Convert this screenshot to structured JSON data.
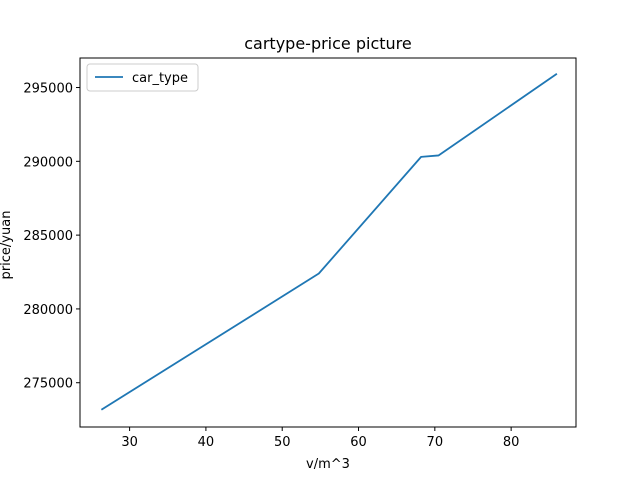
{
  "chart_data": {
    "type": "line",
    "title": "cartype-price picture",
    "xlabel": "v/m^3",
    "ylabel": "price/yuan",
    "xlim": [
      23.5,
      88.5
    ],
    "ylim": [
      272000,
      297000
    ],
    "x_ticks": [
      30,
      40,
      50,
      60,
      70,
      80
    ],
    "y_ticks": [
      275000,
      280000,
      285000,
      290000,
      295000
    ],
    "grid": false,
    "legend_position": "top-left",
    "series": [
      {
        "name": "car_type",
        "color": "#1f77b4",
        "x": [
          26.4,
          54.8,
          68.2,
          70.5,
          85.9
        ],
        "y": [
          273200,
          282400,
          290300,
          290400,
          295900
        ]
      }
    ]
  }
}
